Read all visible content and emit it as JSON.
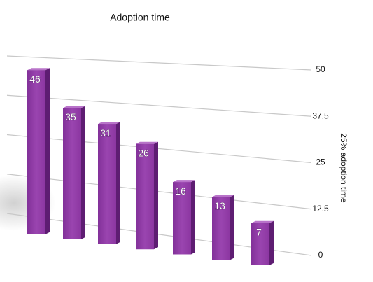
{
  "chart_data": {
    "type": "bar",
    "title": "Adoption time",
    "y_label": "25% adoption time",
    "categories": [
      null,
      null,
      null,
      null,
      null,
      null,
      null
    ],
    "values": [
      46,
      35,
      31,
      26,
      16,
      13,
      7
    ],
    "color": "#8e3aa3",
    "ylim": [
      0,
      50
    ],
    "yticks": [
      0,
      12.5,
      25,
      37.5,
      50
    ],
    "grid": true
  }
}
